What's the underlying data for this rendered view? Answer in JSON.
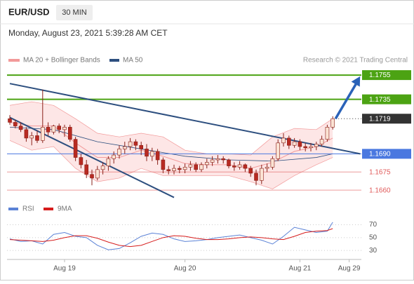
{
  "header": {
    "symbol": "EUR/USD",
    "timeframe": "30 MIN",
    "timestamp": "Monday, August 23, 2021 5:39:28 AM CET"
  },
  "chart_data": {
    "type": "candlestick",
    "credit": "Research © 2021 Trading Central",
    "categories": [
      null,
      null,
      null,
      null,
      null,
      null,
      null,
      null,
      null,
      null,
      "Aug 19",
      null,
      null,
      null,
      null,
      null,
      null,
      null,
      null,
      null,
      null,
      null,
      null,
      null,
      null,
      null,
      null,
      null,
      null,
      null,
      null,
      null,
      "Aug 20",
      null,
      null,
      null,
      null,
      null,
      null,
      null,
      null,
      null,
      null,
      null,
      null,
      null,
      null,
      null,
      null,
      null,
      null,
      null,
      null,
      "Aug 21",
      null,
      null,
      null,
      null,
      null,
      null,
      null,
      null,
      "Aug 29"
    ],
    "candles": [
      [
        1.1719,
        1.1722,
        1.1714,
        1.1716
      ],
      [
        1.1716,
        1.1718,
        1.1711,
        1.1713
      ],
      [
        1.1713,
        1.1716,
        1.1708,
        1.171
      ],
      [
        1.171,
        1.1712,
        1.17,
        1.1703
      ],
      [
        1.1703,
        1.1708,
        1.1697,
        1.1705
      ],
      [
        1.1705,
        1.1709,
        1.1699,
        1.1701
      ],
      [
        1.1701,
        1.1743,
        1.1699,
        1.1712
      ],
      [
        1.1712,
        1.1716,
        1.1705,
        1.1708
      ],
      [
        1.1708,
        1.1714,
        1.1706,
        1.1713
      ],
      [
        1.1713,
        1.1715,
        1.1707,
        1.171
      ],
      [
        1.171,
        1.1714,
        1.1704,
        1.1712
      ],
      [
        1.1712,
        1.1714,
        1.17,
        1.1702
      ],
      [
        1.1702,
        1.1704,
        1.1684,
        1.1687
      ],
      [
        1.1687,
        1.169,
        1.1678,
        1.1681
      ],
      [
        1.1681,
        1.1685,
        1.167,
        1.1673
      ],
      [
        1.1673,
        1.1677,
        1.1664,
        1.167
      ],
      [
        1.167,
        1.168,
        1.1668,
        1.1677
      ],
      [
        1.1677,
        1.1683,
        1.1673,
        1.168
      ],
      [
        1.168,
        1.1688,
        1.1676,
        1.1686
      ],
      [
        1.1686,
        1.1692,
        1.1682,
        1.1689
      ],
      [
        1.1689,
        1.1697,
        1.1686,
        1.1694
      ],
      [
        1.1694,
        1.17,
        1.169,
        1.1696
      ],
      [
        1.1696,
        1.1703,
        1.1693,
        1.17
      ],
      [
        1.17,
        1.1702,
        1.1693,
        1.1697
      ],
      [
        1.1697,
        1.17,
        1.1689,
        1.1694
      ],
      [
        1.1694,
        1.1698,
        1.1684,
        1.1688
      ],
      [
        1.1688,
        1.1695,
        1.1684,
        1.1692
      ],
      [
        1.1692,
        1.1694,
        1.1681,
        1.1685
      ],
      [
        1.1685,
        1.1687,
        1.1674,
        1.1677
      ],
      [
        1.1677,
        1.168,
        1.1673,
        1.1676
      ],
      [
        1.1676,
        1.1681,
        1.1673,
        1.1678
      ],
      [
        1.1678,
        1.168,
        1.1674,
        1.1677
      ],
      [
        1.1677,
        1.1682,
        1.1674,
        1.1679
      ],
      [
        1.1679,
        1.1684,
        1.1676,
        1.1681
      ],
      [
        1.1681,
        1.1683,
        1.1675,
        1.1677
      ],
      [
        1.1677,
        1.1683,
        1.1675,
        1.1681
      ],
      [
        1.1681,
        1.1686,
        1.1678,
        1.1683
      ],
      [
        1.1683,
        1.1688,
        1.168,
        1.1685
      ],
      [
        1.1685,
        1.1689,
        1.1682,
        1.1686
      ],
      [
        1.1686,
        1.1688,
        1.1682,
        1.1685
      ],
      [
        1.1685,
        1.1686,
        1.1678,
        1.168
      ],
      [
        1.168,
        1.1683,
        1.1676,
        1.1679
      ],
      [
        1.1679,
        1.1684,
        1.1677,
        1.1681
      ],
      [
        1.1681,
        1.1682,
        1.1675,
        1.1678
      ],
      [
        1.1678,
        1.168,
        1.1671,
        1.1674
      ],
      [
        1.1674,
        1.1677,
        1.1664,
        1.1668
      ],
      [
        1.1668,
        1.1681,
        1.1665,
        1.1678
      ],
      [
        1.1678,
        1.1682,
        1.1675,
        1.1679
      ],
      [
        1.1679,
        1.1688,
        1.1677,
        1.1686
      ],
      [
        1.1686,
        1.1702,
        1.1684,
        1.1699
      ],
      [
        1.1699,
        1.1707,
        1.1696,
        1.1703
      ],
      [
        1.1703,
        1.1705,
        1.1694,
        1.1697
      ],
      [
        1.1697,
        1.1703,
        1.1695,
        1.17
      ],
      [
        1.17,
        1.1702,
        1.1693,
        1.1696
      ],
      [
        1.1696,
        1.1699,
        1.1692,
        1.1695
      ],
      [
        1.1695,
        1.1699,
        1.1692,
        1.1696
      ],
      [
        1.1696,
        1.17,
        1.1693,
        1.1698
      ],
      [
        1.1698,
        1.1705,
        1.1696,
        1.1702
      ],
      [
        1.1702,
        1.1714,
        1.17,
        1.1712
      ],
      [
        1.1712,
        1.1721,
        1.171,
        1.1719
      ],
      null,
      null,
      null
    ],
    "up_color": "#fbe3d4",
    "down_color": "#b82a22",
    "wick_color": "#8a2018",
    "ylim": [
      1.1652,
      1.1762
    ],
    "bollinger": {
      "name": "MA 20 + Bollinger Bands",
      "color": "#f29a9a",
      "band_color": "#fde0e0",
      "x": [
        0,
        4,
        8,
        12,
        16,
        20,
        24,
        28,
        32,
        36,
        40,
        44,
        48,
        52,
        56,
        59
      ],
      "upper": [
        1.173,
        1.1733,
        1.173,
        1.1719,
        1.1707,
        1.1704,
        1.1707,
        1.1704,
        1.1693,
        1.169,
        1.169,
        1.1689,
        1.1704,
        1.1711,
        1.171,
        1.1719
      ],
      "lower": [
        1.1701,
        1.1693,
        1.1696,
        1.1678,
        1.1667,
        1.167,
        1.1678,
        1.1672,
        1.1672,
        1.1672,
        1.1672,
        1.1667,
        1.1661,
        1.1672,
        1.1681,
        1.1687
      ],
      "ma20": [
        1.1716,
        1.1713,
        1.1713,
        1.1699,
        1.1687,
        1.1687,
        1.1693,
        1.1688,
        1.1682,
        1.1681,
        1.1681,
        1.1678,
        1.1683,
        1.1692,
        1.1696,
        1.1703
      ]
    },
    "ma50": {
      "name": "MA 50",
      "color": "#2d4f7f",
      "x": [
        0,
        8,
        16,
        24,
        32,
        40,
        48,
        56,
        59
      ],
      "values": [
        1.1712,
        1.171,
        1.17,
        1.1694,
        1.1688,
        1.1685,
        1.1684,
        1.1687,
        1.169
      ]
    },
    "levels": [
      {
        "value": 1.1755,
        "color": "#4ca313",
        "box": true,
        "width": 2
      },
      {
        "value": 1.1735,
        "color": "#4ca313",
        "box": true,
        "width": 2
      },
      {
        "value": 1.1719,
        "color": "#333333",
        "box": true,
        "width": 1,
        "dotted": true
      },
      {
        "value": 1.169,
        "label": "1.1690",
        "color": "#4a78e0",
        "box": true,
        "width": 1
      },
      {
        "value": 1.1675,
        "color": "#e05a5a",
        "box": false,
        "width": 1
      },
      {
        "value": 1.166,
        "label": "1.1660",
        "color": "#e05a5a",
        "box": false,
        "width": 1
      }
    ],
    "trendlines": [
      {
        "from": [
          0,
          1.1748
        ],
        "to": [
          64,
          1.169
        ],
        "color": "#2d4f7f"
      },
      {
        "from": [
          0,
          1.172
        ],
        "to": [
          30,
          1.1654
        ],
        "color": "#2d4f7f"
      }
    ],
    "arrow": {
      "from": [
        59,
        1.1719
      ],
      "to": [
        64,
        1.1754
      ],
      "color": "#2a62b8"
    },
    "rsi": {
      "ylim": [
        16,
        76
      ],
      "yticks": [
        70,
        50,
        30
      ],
      "x": [
        0,
        2,
        4,
        6,
        8,
        10,
        12,
        14,
        16,
        18,
        20,
        22,
        24,
        26,
        28,
        30,
        32,
        34,
        36,
        38,
        40,
        42,
        44,
        46,
        48,
        50,
        52,
        54,
        56,
        58,
        59
      ],
      "series": [
        {
          "name": "RSI",
          "color": "#5b82d6",
          "values": [
            48,
            44,
            45,
            40,
            55,
            58,
            52,
            50,
            38,
            31,
            33,
            42,
            52,
            57,
            55,
            48,
            44,
            45,
            47,
            50,
            52,
            54,
            50,
            46,
            40,
            52,
            66,
            62,
            58,
            60,
            74
          ]
        },
        {
          "name": "9MA",
          "color": "#d61c1c",
          "values": [
            47,
            46,
            45,
            44,
            46,
            50,
            53,
            53,
            49,
            43,
            38,
            36,
            38,
            44,
            50,
            53,
            52,
            49,
            47,
            47,
            48,
            50,
            51,
            50,
            48,
            47,
            52,
            58,
            60,
            61,
            64
          ]
        }
      ]
    }
  }
}
